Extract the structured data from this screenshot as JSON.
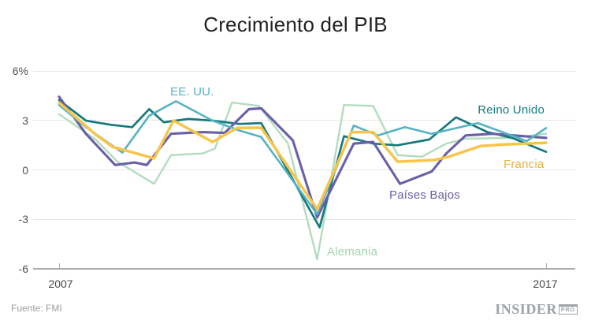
{
  "title": "Crecimiento del PIB",
  "source": "Fuente: FMI",
  "logo": {
    "name": "INSIDER",
    "suffix": "PRO"
  },
  "axis": {
    "y_ticks": [
      "6%",
      "3",
      "0",
      "-3",
      "-6"
    ],
    "x_ticks": [
      "2007",
      "2017"
    ]
  },
  "chart_data": {
    "type": "line",
    "title": "Crecimiento del PIB",
    "source": "FMI",
    "x_range": [
      2007,
      2017
    ],
    "y_range": [
      -6,
      6
    ],
    "y_unit": "%",
    "y_gridlines": [
      6,
      3,
      0,
      -3,
      -6
    ],
    "grid": true,
    "legend_position": "inline-labels",
    "series": [
      {
        "label": "Alemania",
        "color": "#b3dcbf",
        "label_color": "#a4d4b3",
        "width": 2.4,
        "points": [
          [
            2007,
            3.4
          ],
          [
            2007.75,
            1.85
          ],
          [
            2008.2,
            0.5
          ],
          [
            2008.95,
            -0.85
          ],
          [
            2009.3,
            0.9
          ],
          [
            2009.95,
            1.0
          ],
          [
            2010.2,
            1.3
          ],
          [
            2010.55,
            4.1
          ],
          [
            2011.1,
            3.9
          ],
          [
            2011.7,
            1.6
          ],
          [
            2012.3,
            -5.45
          ],
          [
            2012.85,
            3.95
          ],
          [
            2013.45,
            3.9
          ],
          [
            2013.95,
            0.9
          ],
          [
            2014.45,
            0.8
          ],
          [
            2014.95,
            1.6
          ],
          [
            2015.35,
            1.9
          ],
          [
            2016.3,
            1.95
          ],
          [
            2017,
            2.2
          ]
        ]
      },
      {
        "label": "Reino Unido",
        "color": "#17797b",
        "label_color": "#17797b",
        "width": 2.7,
        "points": [
          [
            2007,
            4.25
          ],
          [
            2007.55,
            3.0
          ],
          [
            2008.05,
            2.75
          ],
          [
            2008.5,
            2.6
          ],
          [
            2008.85,
            3.7
          ],
          [
            2009.15,
            2.9
          ],
          [
            2009.65,
            3.1
          ],
          [
            2010.15,
            3.0
          ],
          [
            2010.7,
            2.8
          ],
          [
            2011.15,
            2.85
          ],
          [
            2012.35,
            -3.5
          ],
          [
            2012.85,
            2.05
          ],
          [
            2013.45,
            1.6
          ],
          [
            2013.95,
            1.5
          ],
          [
            2014.6,
            1.85
          ],
          [
            2015.15,
            3.2
          ],
          [
            2015.8,
            2.3
          ],
          [
            2016.3,
            1.95
          ],
          [
            2017,
            1.1
          ]
        ]
      },
      {
        "label": "Países Bajos",
        "color": "#6a5fa9",
        "label_color": "#6a5fa9",
        "width": 3.1,
        "points": [
          [
            2007,
            4.45
          ],
          [
            2007.55,
            2.2
          ],
          [
            2008.15,
            0.3
          ],
          [
            2008.55,
            0.45
          ],
          [
            2008.8,
            0.3
          ],
          [
            2009.3,
            2.2
          ],
          [
            2009.95,
            2.3
          ],
          [
            2010.4,
            2.25
          ],
          [
            2010.9,
            3.7
          ],
          [
            2011.15,
            3.75
          ],
          [
            2011.8,
            1.8
          ],
          [
            2012.3,
            -2.9
          ],
          [
            2013.05,
            1.6
          ],
          [
            2013.45,
            1.7
          ],
          [
            2014,
            -0.85
          ],
          [
            2014.65,
            -0.1
          ],
          [
            2014.95,
            1.0
          ],
          [
            2015.35,
            2.1
          ],
          [
            2015.9,
            2.2
          ],
          [
            2017,
            1.95
          ]
        ]
      },
      {
        "label": "EE. UU.",
        "color": "#56b3c4",
        "label_color": "#56b3c4",
        "width": 2.6,
        "points": [
          [
            2007,
            3.95
          ],
          [
            2007.55,
            2.6
          ],
          [
            2008.3,
            1.05
          ],
          [
            2008.85,
            3.3
          ],
          [
            2009.4,
            4.18
          ],
          [
            2010.15,
            3.0
          ],
          [
            2010.7,
            2.4
          ],
          [
            2011.15,
            2.0
          ],
          [
            2012.3,
            -2.7
          ],
          [
            2013.05,
            2.7
          ],
          [
            2013.55,
            2.1
          ],
          [
            2014.1,
            2.6
          ],
          [
            2014.65,
            2.2
          ],
          [
            2015.6,
            2.85
          ],
          [
            2016.6,
            1.75
          ],
          [
            2017,
            2.55
          ]
        ]
      },
      {
        "label": "Francia",
        "color": "#f8c54b",
        "label_color": "#edb33c",
        "width": 3.5,
        "points": [
          [
            2007,
            4.1
          ],
          [
            2007.75,
            2.15
          ],
          [
            2008.1,
            1.4
          ],
          [
            2008.95,
            0.7
          ],
          [
            2009.35,
            3.0
          ],
          [
            2010.15,
            1.7
          ],
          [
            2010.65,
            2.55
          ],
          [
            2011.15,
            2.57
          ],
          [
            2012.3,
            -2.4
          ],
          [
            2013,
            2.3
          ],
          [
            2013.45,
            2.3
          ],
          [
            2013.95,
            0.5
          ],
          [
            2014.7,
            0.6
          ],
          [
            2015,
            0.8
          ],
          [
            2015.65,
            1.45
          ],
          [
            2016.15,
            1.55
          ],
          [
            2017,
            1.65
          ]
        ]
      }
    ]
  }
}
